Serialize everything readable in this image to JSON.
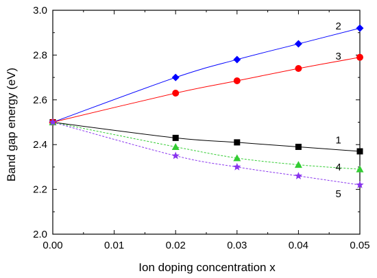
{
  "chart_data": {
    "type": "line",
    "xlabel": "Ion doping concentration x",
    "ylabel": "Band gap energy (eV)",
    "xlim": [
      0.0,
      0.05
    ],
    "ylim": [
      2.0,
      3.0
    ],
    "x_ticks": [
      "0.00",
      "0.01",
      "0.02",
      "0.03",
      "0.04",
      "0.05"
    ],
    "y_ticks": [
      "2.0",
      "2.2",
      "2.4",
      "2.6",
      "2.8",
      "3.0"
    ],
    "grid": false,
    "series": [
      {
        "name": "1",
        "color": "#000000",
        "marker": "square",
        "line_style": "solid",
        "x": [
          0.0,
          0.02,
          0.03,
          0.04,
          0.05
        ],
        "y": [
          2.5,
          2.43,
          2.41,
          2.39,
          2.37
        ],
        "label_pos": [
          0.0465,
          2.42
        ]
      },
      {
        "name": "2",
        "color": "#0000ff",
        "marker": "diamond",
        "line_style": "solid",
        "x": [
          0.0,
          0.02,
          0.03,
          0.04,
          0.05
        ],
        "y": [
          2.5,
          2.7,
          2.78,
          2.85,
          2.92
        ],
        "label_pos": [
          0.0465,
          2.93
        ]
      },
      {
        "name": "3",
        "color": "#ff0000",
        "marker": "circle",
        "line_style": "solid",
        "x": [
          0.0,
          0.02,
          0.03,
          0.04,
          0.05
        ],
        "y": [
          2.5,
          2.63,
          2.685,
          2.74,
          2.79
        ],
        "label_pos": [
          0.0465,
          2.795
        ]
      },
      {
        "name": "4",
        "color": "#33cc33",
        "marker": "triangle",
        "line_style": "dotted",
        "x": [
          0.0,
          0.02,
          0.03,
          0.04,
          0.05
        ],
        "y": [
          2.5,
          2.39,
          2.34,
          2.31,
          2.29
        ],
        "label_pos": [
          0.0465,
          2.3
        ]
      },
      {
        "name": "5",
        "color": "#8833ee",
        "marker": "star",
        "line_style": "dotted",
        "x": [
          0.0,
          0.02,
          0.03,
          0.04,
          0.05
        ],
        "y": [
          2.5,
          2.35,
          2.3,
          2.26,
          2.22
        ],
        "label_pos": [
          0.0465,
          2.18
        ]
      }
    ]
  }
}
